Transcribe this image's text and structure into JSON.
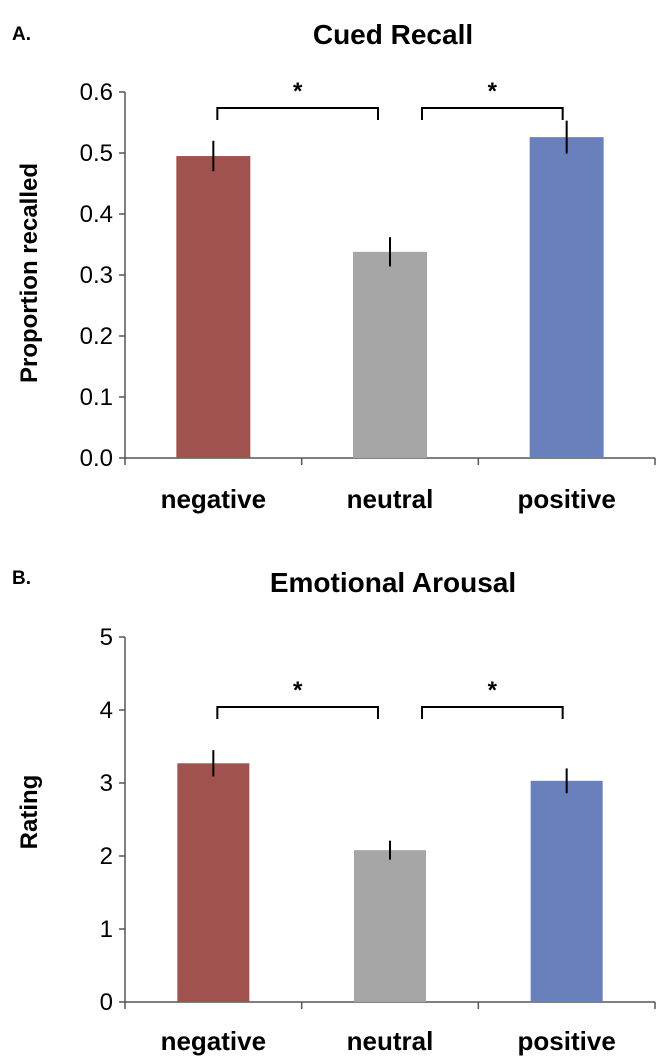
{
  "colors": {
    "negative": "#a0534e",
    "neutral": "#a6a6a6",
    "positive": "#6a80bc"
  },
  "chart_data": [
    {
      "type": "bar",
      "panel": "A.",
      "title": "Cued Recall",
      "ylabel": "Proportion recalled",
      "xlabel": "",
      "categories": [
        "negative",
        "neutral",
        "positive"
      ],
      "values": [
        0.495,
        0.338,
        0.526
      ],
      "errors": [
        0.025,
        0.024,
        0.027
      ],
      "ylim": [
        0,
        0.6
      ],
      "yticks": [
        "0.0",
        "0.1",
        "0.2",
        "0.3",
        "0.4",
        "0.5",
        "0.6"
      ],
      "grid": false,
      "significance": [
        {
          "from": "negative",
          "to": "neutral",
          "label": "*"
        },
        {
          "from": "neutral",
          "to": "positive",
          "label": "*"
        }
      ]
    },
    {
      "type": "bar",
      "panel": "B.",
      "title": "Emotional Arousal",
      "ylabel": "Rating",
      "xlabel": "",
      "categories": [
        "negative",
        "neutral",
        "positive"
      ],
      "values": [
        3.27,
        2.08,
        3.03
      ],
      "errors": [
        0.18,
        0.13,
        0.17
      ],
      "ylim": [
        0,
        5
      ],
      "yticks": [
        "0",
        "1",
        "2",
        "3",
        "4",
        "5"
      ],
      "grid": false,
      "significance": [
        {
          "from": "negative",
          "to": "neutral",
          "label": "*"
        },
        {
          "from": "neutral",
          "to": "positive",
          "label": "*"
        }
      ]
    }
  ]
}
